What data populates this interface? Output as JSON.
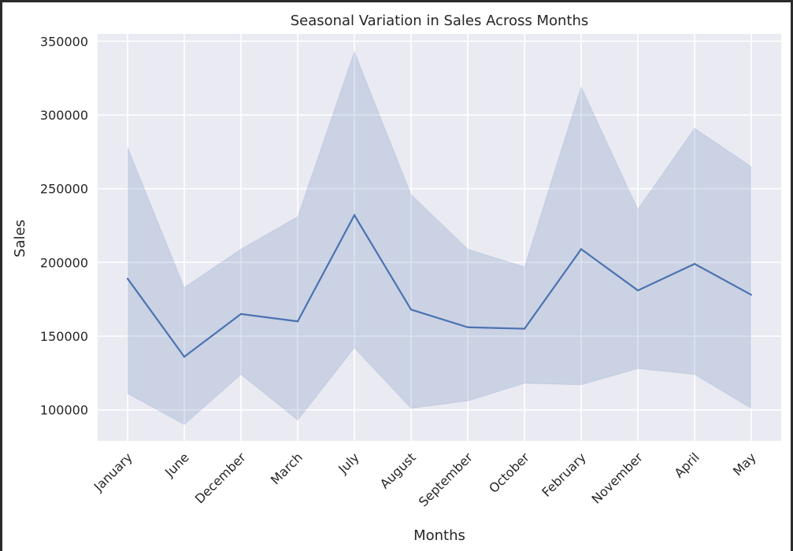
{
  "chart_data": {
    "type": "line",
    "title": "Seasonal Variation in Sales  Across Months",
    "xlabel": "Months",
    "ylabel": "Sales",
    "categories": [
      "January",
      "June",
      "December",
      "March",
      "July",
      "August",
      "September",
      "October",
      "February",
      "November",
      "April",
      "May"
    ],
    "series": [
      {
        "values": [
          189000,
          136000,
          165000,
          160000,
          232000,
          168000,
          156000,
          155000,
          209000,
          181000,
          199000,
          178000
        ],
        "ci_upper": [
          278000,
          183000,
          209000,
          231000,
          343000,
          246000,
          209000,
          197000,
          319000,
          236000,
          291000,
          265000
        ],
        "ci_lower": [
          111000,
          90000,
          124000,
          93000,
          142000,
          101000,
          106000,
          118000,
          117000,
          128000,
          124000,
          101000
        ],
        "color": "#4c72b0"
      }
    ],
    "yticks": [
      100000,
      150000,
      200000,
      250000,
      300000,
      350000
    ],
    "ylim": [
      79000,
      355000
    ],
    "grid": true,
    "background": "#eaeaf2",
    "band_color": "#4c72b0"
  }
}
